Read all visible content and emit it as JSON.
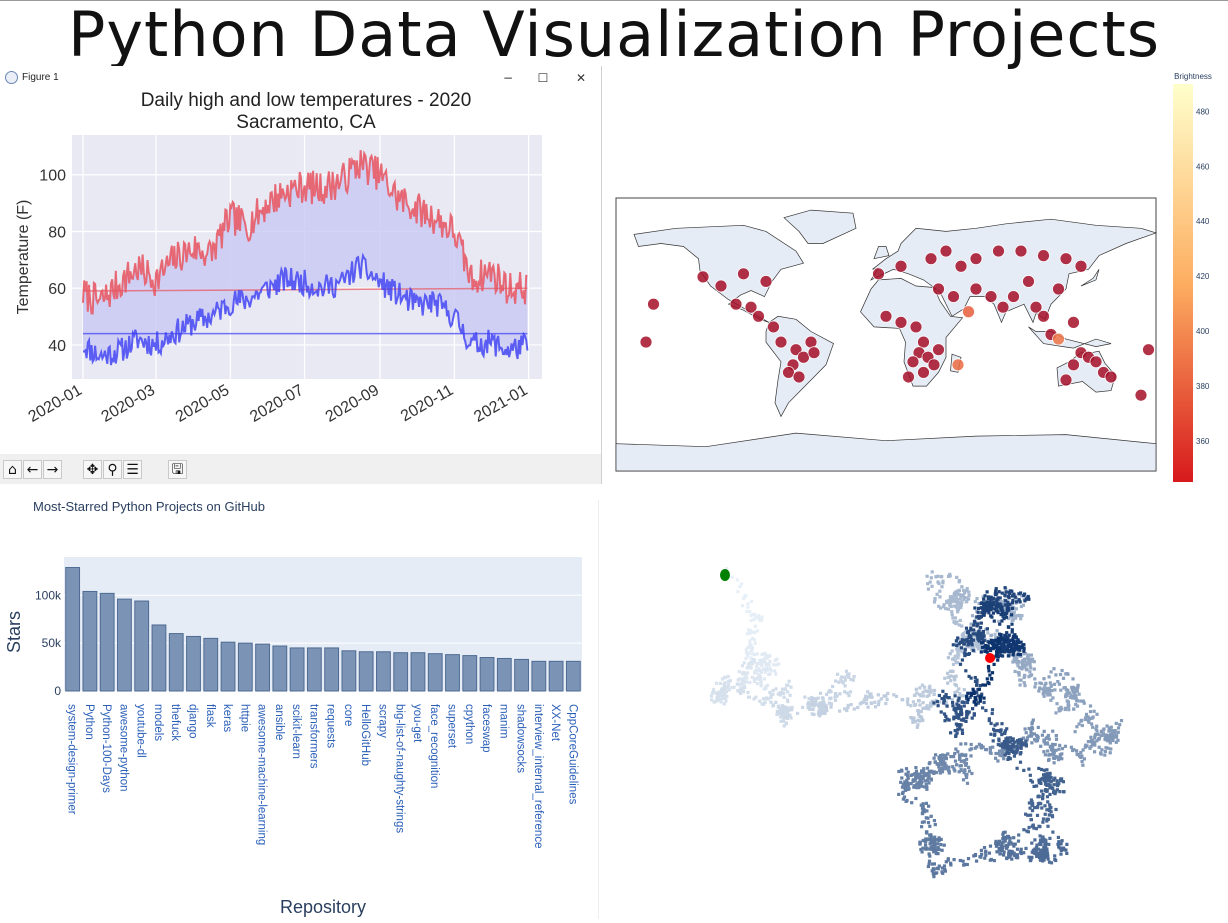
{
  "page_title": "Python Data Visualization Projects",
  "window": {
    "title": "Figure 1",
    "minimize": "−",
    "maximize": "☐",
    "close": "✕",
    "toolbar": [
      {
        "name": "home-icon",
        "glyph": "⌂"
      },
      {
        "name": "back-icon",
        "glyph": "←"
      },
      {
        "name": "forward-icon",
        "glyph": "→"
      },
      {
        "name": "pan-icon",
        "glyph": "✥"
      },
      {
        "name": "zoom-icon",
        "glyph": "⚲"
      },
      {
        "name": "configure-icon",
        "glyph": "☰"
      },
      {
        "name": "save-icon",
        "glyph": "🖫"
      }
    ]
  },
  "chart_data": [
    {
      "type": "line",
      "title": "Daily high and low temperatures - 2020",
      "subtitle": "Sacramento, CA",
      "xlabel": "",
      "ylabel": "Temperature (F)",
      "ylim": [
        28,
        114
      ],
      "yticks": [
        40,
        60,
        80,
        100
      ],
      "xticks": [
        "2020-01",
        "2020-03",
        "2020-05",
        "2020-07",
        "2020-09",
        "2020-11",
        "2021-01"
      ],
      "grid": true,
      "fill_between": true,
      "colors": {
        "high": "#e8545e",
        "low": "#3a3cf2",
        "fill": "#c8c8f4",
        "bg": "#e9e9f4"
      },
      "series": [
        {
          "name": "high",
          "x": [
            "2020-01-01",
            "2020-01-15",
            "2020-02-01",
            "2020-02-15",
            "2020-03-01",
            "2020-03-15",
            "2020-04-01",
            "2020-04-15",
            "2020-05-01",
            "2020-05-15",
            "2020-06-01",
            "2020-06-15",
            "2020-07-01",
            "2020-07-15",
            "2020-08-01",
            "2020-08-15",
            "2020-09-01",
            "2020-09-15",
            "2020-10-01",
            "2020-10-15",
            "2020-11-01",
            "2020-11-15",
            "2020-12-01",
            "2020-12-15",
            "2020-12-31"
          ],
          "values": [
            58,
            55,
            62,
            67,
            63,
            70,
            74,
            72,
            85,
            82,
            90,
            94,
            96,
            95,
            98,
            104,
            100,
            92,
            88,
            85,
            80,
            63,
            66,
            60,
            60
          ]
        },
        {
          "name": "low",
          "x": [
            "2020-01-01",
            "2020-01-15",
            "2020-02-01",
            "2020-02-15",
            "2020-03-01",
            "2020-03-15",
            "2020-04-01",
            "2020-04-15",
            "2020-05-01",
            "2020-05-15",
            "2020-06-01",
            "2020-06-15",
            "2020-07-01",
            "2020-07-15",
            "2020-08-01",
            "2020-08-15",
            "2020-09-01",
            "2020-09-15",
            "2020-10-01",
            "2020-10-15",
            "2020-11-01",
            "2020-11-15",
            "2020-12-01",
            "2020-12-15",
            "2020-12-31"
          ],
          "values": [
            40,
            36,
            38,
            42,
            40,
            44,
            48,
            50,
            55,
            56,
            60,
            63,
            62,
            60,
            62,
            68,
            62,
            58,
            54,
            55,
            50,
            40,
            41,
            38,
            40
          ]
        }
      ]
    },
    {
      "type": "scatter",
      "title": "",
      "colorbar_title": "Brightness",
      "colorbar_ticks": [
        360,
        380,
        400,
        420,
        440,
        460,
        480
      ],
      "color_range": [
        345,
        490
      ],
      "colorscale": [
        "#d7191c",
        "#fdae61",
        "#ffffcc"
      ],
      "projection": "equirectangular",
      "points": [
        {
          "lon": -155,
          "lat": 20,
          "b": 360
        },
        {
          "lon": -160,
          "lat": -5,
          "b": 362
        },
        {
          "lon": -122,
          "lat": 38,
          "b": 358
        },
        {
          "lon": -110,
          "lat": 32,
          "b": 365
        },
        {
          "lon": -100,
          "lat": 20,
          "b": 360
        },
        {
          "lon": -90,
          "lat": 18,
          "b": 358
        },
        {
          "lon": -85,
          "lat": 12,
          "b": 356
        },
        {
          "lon": -75,
          "lat": 5,
          "b": 355
        },
        {
          "lon": -70,
          "lat": -5,
          "b": 356
        },
        {
          "lon": -60,
          "lat": -10,
          "b": 357
        },
        {
          "lon": -55,
          "lat": -15,
          "b": 359
        },
        {
          "lon": -50,
          "lat": -5,
          "b": 356
        },
        {
          "lon": -62,
          "lat": -20,
          "b": 355
        },
        {
          "lon": -65,
          "lat": -25,
          "b": 358
        },
        {
          "lon": -58,
          "lat": -28,
          "b": 357
        },
        {
          "lon": -48,
          "lat": -12,
          "b": 356
        },
        {
          "lon": -80,
          "lat": 35,
          "b": 360
        },
        {
          "lon": -95,
          "lat": 40,
          "b": 358
        },
        {
          "lon": -5,
          "lat": 40,
          "b": 358
        },
        {
          "lon": 10,
          "lat": 45,
          "b": 360
        },
        {
          "lon": 30,
          "lat": 50,
          "b": 356
        },
        {
          "lon": 40,
          "lat": 55,
          "b": 357
        },
        {
          "lon": 50,
          "lat": 45,
          "b": 358
        },
        {
          "lon": 60,
          "lat": 50,
          "b": 356
        },
        {
          "lon": 75,
          "lat": 55,
          "b": 357
        },
        {
          "lon": 90,
          "lat": 55,
          "b": 356
        },
        {
          "lon": 105,
          "lat": 52,
          "b": 358
        },
        {
          "lon": 120,
          "lat": 50,
          "b": 356
        },
        {
          "lon": 130,
          "lat": 45,
          "b": 357
        },
        {
          "lon": 35,
          "lat": 30,
          "b": 356
        },
        {
          "lon": 45,
          "lat": 25,
          "b": 358
        },
        {
          "lon": 0,
          "lat": 12,
          "b": 356
        },
        {
          "lon": 10,
          "lat": 8,
          "b": 357
        },
        {
          "lon": 20,
          "lat": 5,
          "b": 356
        },
        {
          "lon": 25,
          "lat": -5,
          "b": 358
        },
        {
          "lon": 22,
          "lat": -12,
          "b": 356
        },
        {
          "lon": 28,
          "lat": -15,
          "b": 357
        },
        {
          "lon": 32,
          "lat": -20,
          "b": 358
        },
        {
          "lon": 25,
          "lat": -25,
          "b": 360
        },
        {
          "lon": 18,
          "lat": -18,
          "b": 362
        },
        {
          "lon": 35,
          "lat": -10,
          "b": 356
        },
        {
          "lon": 15,
          "lat": -28,
          "b": 370
        },
        {
          "lon": 48,
          "lat": -20,
          "b": 385
        },
        {
          "lon": 70,
          "lat": 25,
          "b": 356
        },
        {
          "lon": 78,
          "lat": 18,
          "b": 357
        },
        {
          "lon": 85,
          "lat": 25,
          "b": 356
        },
        {
          "lon": 100,
          "lat": 18,
          "b": 358
        },
        {
          "lon": 105,
          "lat": 12,
          "b": 356
        },
        {
          "lon": 110,
          "lat": 0,
          "b": 357
        },
        {
          "lon": 115,
          "lat": -3,
          "b": 390
        },
        {
          "lon": 125,
          "lat": 8,
          "b": 356
        },
        {
          "lon": 130,
          "lat": -12,
          "b": 358
        },
        {
          "lon": 135,
          "lat": -15,
          "b": 356
        },
        {
          "lon": 140,
          "lat": -18,
          "b": 357
        },
        {
          "lon": 145,
          "lat": -25,
          "b": 360
        },
        {
          "lon": 150,
          "lat": -28,
          "b": 358
        },
        {
          "lon": 125,
          "lat": -20,
          "b": 362
        },
        {
          "lon": 120,
          "lat": -30,
          "b": 365
        },
        {
          "lon": 170,
          "lat": -40,
          "b": 358
        },
        {
          "lon": 175,
          "lat": -10,
          "b": 360
        },
        {
          "lon": 60,
          "lat": 30,
          "b": 357
        },
        {
          "lon": 95,
          "lat": 35,
          "b": 356
        },
        {
          "lon": 115,
          "lat": 30,
          "b": 358
        },
        {
          "lon": 55,
          "lat": 15,
          "b": 378
        }
      ]
    },
    {
      "type": "bar",
      "title": "Most-Starred Python Projects on GitHub",
      "xlabel": "Repository",
      "ylabel": "Stars",
      "ylim": [
        0,
        140000
      ],
      "yticks": [
        0,
        50000,
        100000
      ],
      "ytick_labels": [
        "0",
        "50k",
        "100k"
      ],
      "colors": {
        "bar": "#7b93b5",
        "bar_border": "#4f6b93",
        "bg": "#e5ecf6",
        "tick_label": "#2a5fb8"
      },
      "categories": [
        "system-design-primer",
        "Python",
        "Python-100-Days",
        "awesome-python",
        "youtube-dl",
        "models",
        "thefuck",
        "django",
        "flask",
        "keras",
        "httpie",
        "awesome-machine-learning",
        "ansible",
        "scikit-learn",
        "transformers",
        "requests",
        "core",
        "HelloGitHub",
        "scrapy",
        "big-list-of-naughty-strings",
        "you-get",
        "face_recognition",
        "superset",
        "cpython",
        "faceswap",
        "manim",
        "shadowsocks",
        "interview_internal_reference",
        "XX-Net",
        "CppCoreGuidelines"
      ],
      "values": [
        129000,
        104000,
        102000,
        96000,
        94000,
        69000,
        60000,
        57000,
        55000,
        51000,
        50000,
        49000,
        47000,
        45000,
        45000,
        45000,
        42000,
        41000,
        41000,
        40000,
        40000,
        39000,
        38000,
        37000,
        35000,
        34000,
        33000,
        31000,
        31000,
        31000
      ]
    },
    {
      "type": "scatter",
      "title": "",
      "subtype": "random-walk",
      "colorscale": "Blues",
      "start": {
        "x": 0,
        "y": 0,
        "color": "#008000"
      },
      "end": {
        "x": 275,
        "y": -95,
        "color": "#ff0000"
      },
      "num_points": 50000
    }
  ]
}
